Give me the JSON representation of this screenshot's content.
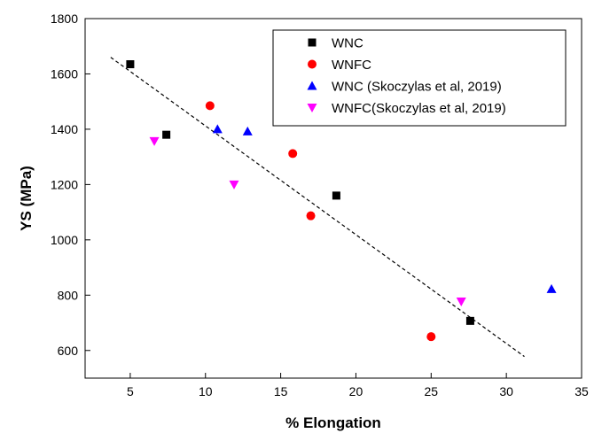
{
  "chart_data": {
    "type": "scatter",
    "title": "",
    "xlabel": "% Elongation",
    "ylabel": "YS (MPa)",
    "xlim": [
      2,
      35
    ],
    "ylim": [
      500,
      1800
    ],
    "xticks": [
      5,
      10,
      15,
      20,
      25,
      30,
      35
    ],
    "yticks": [
      600,
      800,
      1000,
      1200,
      1400,
      1600,
      1800
    ],
    "grid": false,
    "legend_position": "top-right",
    "series": [
      {
        "name": "WNC",
        "marker": "square",
        "color": "#000000",
        "points": [
          [
            5.0,
            1635
          ],
          [
            7.4,
            1380
          ],
          [
            18.7,
            1160
          ],
          [
            27.6,
            707
          ]
        ]
      },
      {
        "name": "WNFC",
        "marker": "circle",
        "color": "#ff0000",
        "points": [
          [
            10.3,
            1485
          ],
          [
            15.8,
            1312
          ],
          [
            17.0,
            1087
          ],
          [
            25.0,
            650
          ]
        ]
      },
      {
        "name": "WNC (Skoczylas et al, 2019)",
        "marker": "triangle-up",
        "color": "#0000ff",
        "points": [
          [
            10.8,
            1400
          ],
          [
            12.8,
            1392
          ],
          [
            33.0,
            822
          ]
        ]
      },
      {
        "name": "WNFC(Skoczylas et al, 2019)",
        "marker": "triangle-down",
        "color": "#ff00ff",
        "points": [
          [
            6.6,
            1357
          ],
          [
            11.9,
            1200
          ],
          [
            27.0,
            777
          ]
        ]
      }
    ],
    "trendline": {
      "style": "dashed",
      "color": "#000000",
      "from": [
        3.7,
        1660
      ],
      "to": [
        31.2,
        578
      ]
    }
  }
}
